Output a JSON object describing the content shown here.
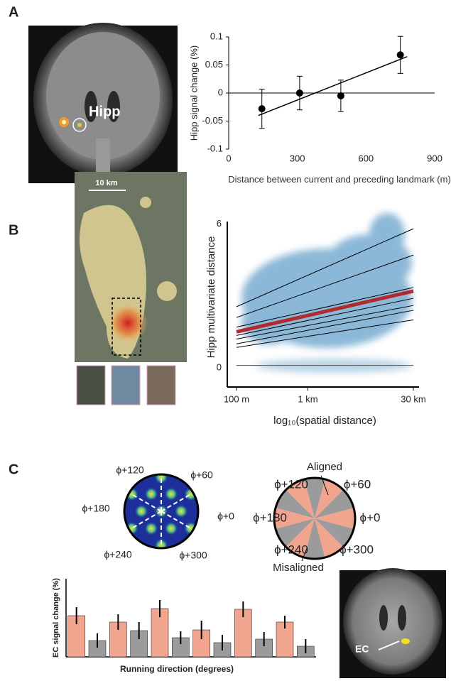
{
  "panel_labels": [
    "A",
    "B",
    "C"
  ],
  "images": {
    "hipp_label": "Hipp",
    "scale_label": "10 km",
    "ec_label": "EC"
  },
  "grid_diagram": {
    "labels": [
      "ϕ+120",
      "ϕ+60",
      "ϕ+180",
      "ϕ+0",
      "ϕ+240",
      "ϕ+300"
    ]
  },
  "alignment_diagram": {
    "labels": [
      "ϕ+120",
      "ϕ+60",
      "ϕ+180",
      "ϕ+0",
      "ϕ+240",
      "ϕ+300"
    ],
    "aligned": "Aligned",
    "misaligned": "Misaligned"
  },
  "chart_data": [
    {
      "type": "scatter",
      "ylabel": "Hipp signal change (%)",
      "xlabel": "Distance between current and preceding landmark (m)",
      "x": [
        145,
        310,
        490,
        750
      ],
      "values": [
        -0.028,
        0,
        -0.005,
        0.068
      ],
      "errors": [
        0.035,
        0.03,
        0.028,
        0.033
      ],
      "fit": {
        "x": [
          130,
          780
        ],
        "y": [
          -0.04,
          0.065
        ]
      },
      "xlim": [
        0,
        900
      ],
      "ylim": [
        -0.1,
        0.1
      ],
      "xticks": [
        0,
        300,
        600,
        900
      ],
      "yticks": [
        -0.1,
        -0.05,
        0,
        0.05,
        0.1
      ],
      "color": "#000000"
    },
    {
      "type": "line",
      "ylabel": "Hipp multivariate distance",
      "xlabel": "log₁₀(spatial distance)",
      "log_x": true,
      "xlim": [
        100,
        30000
      ],
      "ylim": [
        -0.8,
        6.1
      ],
      "xticks": [
        {
          "value": 100,
          "label": "100 m"
        },
        {
          "value": 1000,
          "label": "1 km"
        },
        {
          "value": 30000,
          "label": "30 km"
        }
      ],
      "yticks": [
        0,
        6
      ],
      "x": [
        100,
        30000
      ],
      "series": [
        {
          "color": "#000000",
          "width": 1,
          "values": [
            2.55,
            5.8
          ]
        },
        {
          "color": "#000000",
          "width": 1,
          "values": [
            2.1,
            4.7
          ]
        },
        {
          "color": "#000000",
          "width": 1,
          "values": [
            1.7,
            3.35
          ]
        },
        {
          "color": "#000000",
          "width": 1,
          "values": [
            1.35,
            2.9
          ]
        },
        {
          "color": "#000000",
          "width": 1,
          "values": [
            1.2,
            2.6
          ]
        },
        {
          "color": "#000000",
          "width": 1,
          "values": [
            1.0,
            2.4
          ]
        },
        {
          "color": "#000000",
          "width": 1,
          "values": [
            0.85,
            2.0
          ]
        },
        {
          "color": "#555555",
          "width": 1,
          "values": [
            0.1,
            0.1
          ]
        },
        {
          "color": "#b22a2e",
          "width": 5,
          "values": [
            1.5,
            3.2
          ]
        }
      ]
    },
    {
      "type": "bar",
      "ylabel": "EC signal change (%)",
      "xlabel": "Running direction (degrees)",
      "values": [
        58,
        23,
        49,
        37,
        68,
        27,
        38,
        20,
        67,
        25,
        49,
        15
      ],
      "errors": [
        12,
        10,
        11,
        12,
        12,
        9,
        13,
        11,
        11,
        10,
        9,
        10
      ],
      "colors": [
        "#f2a58e",
        "#9b9b9b"
      ],
      "ylim": [
        0,
        110
      ]
    }
  ]
}
